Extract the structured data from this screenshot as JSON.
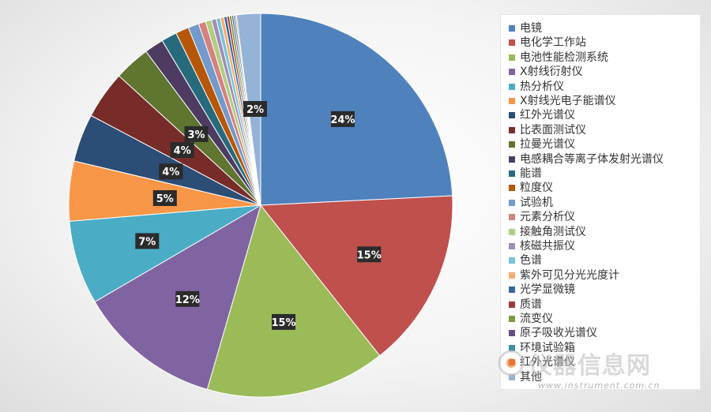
{
  "chart_data": {
    "type": "pie",
    "categories": [
      "电镜",
      "电化学工作站",
      "电池性能检测系统",
      "X射线衍射仪",
      "热分析仪",
      "X射线光电子能谱仪",
      "红外光谱仪",
      "比表面测试仪",
      "拉曼光谱仪",
      "电感耦合等离子体发射光谱仪",
      "能谱",
      "粒度仪",
      "试验机",
      "元素分析仪",
      "接触角测试仪",
      "核磁共振仪",
      "色谱",
      "紫外可见分光光度计",
      "光学显微镜",
      "质谱",
      "流变仪",
      "原子吸收光谱仪",
      "环境试验箱",
      "红外光谱仪",
      "其他"
    ],
    "values": [
      24,
      15,
      15,
      12,
      7,
      5,
      4,
      4,
      3,
      1.6,
      1.3,
      1.1,
      0.9,
      0.6,
      0.5,
      0.4,
      0.35,
      0.3,
      0.25,
      0.2,
      0.2,
      0.15,
      0.15,
      0.1,
      2
    ],
    "labels": [
      "24%",
      "15%",
      "15%",
      "12%",
      "7%",
      "5%",
      "4%",
      "4%",
      "3%",
      "",
      "",
      "",
      "",
      "",
      "",
      "",
      "",
      "",
      "",
      "",
      "",
      "",
      "",
      "",
      "2%"
    ],
    "colors": [
      "#4f81bd",
      "#c0504d",
      "#9bbb59",
      "#8064a2",
      "#4bacc6",
      "#f79646",
      "#2c4d75",
      "#772c2a",
      "#5f7530",
      "#4d3b62",
      "#276a7c",
      "#b65708",
      "#729aca",
      "#d4817f",
      "#b0cd81",
      "#a08cba",
      "#77c3d7",
      "#f9ac6e",
      "#3a67a0",
      "#9c3b38",
      "#7b9b3e",
      "#654f81",
      "#3e8da3",
      "#e8761b",
      "#95b3d7"
    ],
    "legend_position": "right"
  },
  "legend": {
    "items": [
      "电镜",
      "电化学工作站",
      "电池性能检测系统",
      "X射线衍射仪",
      "热分析仪",
      "X射线光电子能谱仪",
      "红外光谱仪",
      "比表面测试仪",
      "拉曼光谱仪",
      "电感耦合等离子体发射光谱仪",
      "能谱",
      "粒度仪",
      "试验机",
      "元素分析仪",
      "接触角测试仪",
      "核磁共振仪",
      "色谱",
      "紫外可见分光光度计",
      "光学显微镜",
      "质谱",
      "流变仪",
      "原子吸收光谱仪",
      "环境试验箱",
      "红外光谱仪",
      "其他"
    ]
  },
  "watermark": {
    "text": "仪器信息网",
    "url": "www.instrument.com.cn"
  }
}
